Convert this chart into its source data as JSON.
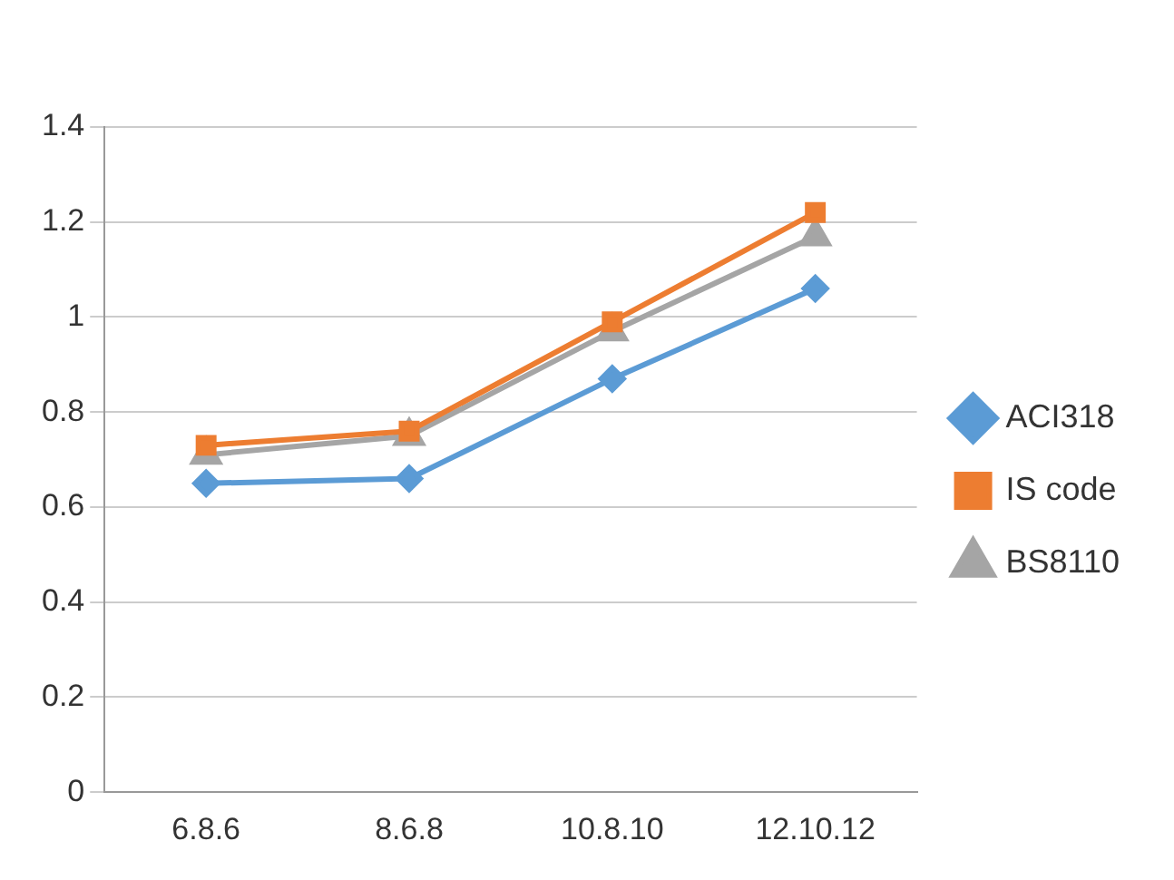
{
  "chart_data": {
    "type": "line",
    "categories": [
      "6.8.6",
      "8.6.8",
      "10.8.10",
      "12.10.12"
    ],
    "series": [
      {
        "name": "ACI318",
        "color": "#5b9bd5",
        "marker": "diamond",
        "values": [
          0.65,
          0.66,
          0.87,
          1.06
        ]
      },
      {
        "name": "IS code",
        "color": "#ed7d31",
        "marker": "square",
        "values": [
          0.73,
          0.76,
          0.99,
          1.22
        ]
      },
      {
        "name": "BS8110",
        "color": "#a5a5a5",
        "marker": "triangle",
        "values": [
          0.71,
          0.75,
          0.97,
          1.17
        ]
      }
    ],
    "ylim": [
      0,
      1.4
    ],
    "yticks": [
      0,
      0.2,
      0.4,
      0.6,
      0.8,
      1,
      1.2,
      1.4
    ],
    "grid": "y",
    "legend": "right"
  }
}
